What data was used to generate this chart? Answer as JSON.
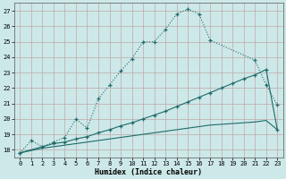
{
  "xlabel": "Humidex (Indice chaleur)",
  "xlim": [
    -0.5,
    23.5
  ],
  "ylim": [
    17.5,
    27.5
  ],
  "xticks": [
    0,
    1,
    2,
    3,
    4,
    5,
    6,
    7,
    8,
    9,
    10,
    11,
    12,
    13,
    14,
    15,
    16,
    17,
    18,
    19,
    20,
    21,
    22,
    23
  ],
  "yticks": [
    18,
    19,
    20,
    21,
    22,
    23,
    24,
    25,
    26,
    27
  ],
  "bg_color": "#cde8e8",
  "grid_color": "#b8d8d8",
  "line_color": "#1e6b6b",
  "line1_x": [
    0,
    1,
    2,
    3,
    4,
    5,
    6,
    7,
    8,
    9,
    10,
    11,
    12,
    13,
    14,
    15,
    16,
    17,
    21,
    22,
    23
  ],
  "line1_y": [
    17.8,
    18.6,
    18.2,
    18.5,
    18.8,
    20.0,
    19.4,
    21.3,
    22.2,
    23.1,
    23.9,
    25.0,
    25.0,
    25.8,
    26.8,
    27.1,
    26.8,
    25.1,
    23.8,
    22.2,
    20.9
  ],
  "line2_x": [
    0,
    2,
    3,
    4,
    5,
    6,
    7,
    8,
    9,
    10,
    11,
    12,
    13,
    14,
    15,
    16,
    17,
    18,
    19,
    20,
    21,
    22,
    23
  ],
  "line2_y": [
    17.8,
    18.2,
    18.4,
    18.5,
    18.7,
    18.85,
    19.1,
    19.3,
    19.55,
    19.75,
    20.0,
    20.25,
    20.5,
    20.8,
    21.1,
    21.4,
    21.7,
    22.0,
    22.3,
    22.6,
    22.85,
    23.2,
    19.3
  ],
  "line3_x": [
    0,
    2,
    3,
    4,
    5,
    6,
    7,
    8,
    9,
    10,
    11,
    12,
    13,
    14,
    15,
    16,
    17,
    18,
    19,
    20,
    21,
    22,
    23
  ],
  "line3_y": [
    17.8,
    18.1,
    18.2,
    18.3,
    18.4,
    18.5,
    18.6,
    18.7,
    18.8,
    18.9,
    19.0,
    19.1,
    19.2,
    19.3,
    19.4,
    19.5,
    19.6,
    19.65,
    19.7,
    19.75,
    19.8,
    19.9,
    19.3
  ]
}
